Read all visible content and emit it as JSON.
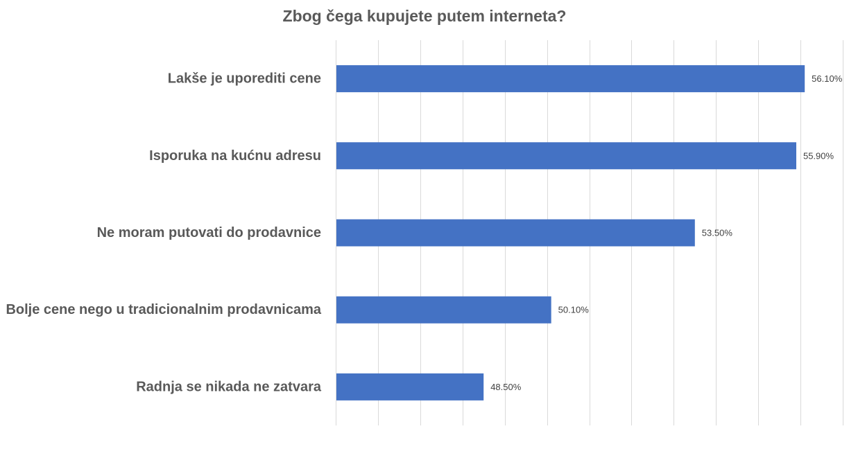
{
  "chart_data": {
    "type": "bar",
    "orientation": "horizontal",
    "title": "Zbog čega kupujete putem interneta?",
    "xlabel": "",
    "ylabel": "",
    "categories": [
      "Lakše je uporediti cene",
      "Isporuka na kućnu adresu",
      "Ne moram putovati do prodavnice",
      "Bolje cene nego u tradicionalnim prodavnicama",
      "Radnja se nikada ne zatvara"
    ],
    "values": [
      56.1,
      55.9,
      53.5,
      50.1,
      48.5
    ],
    "data_labels": [
      "56.10%",
      "55.90%",
      "53.50%",
      "50.10%",
      "48.50%"
    ],
    "xlim": [
      45,
      57
    ],
    "x_gridline_step": 1,
    "grid": true,
    "legend": "none",
    "bar_color": "#4472c4",
    "gridline_color": "#d9d9d9",
    "text_color": "#595959"
  }
}
